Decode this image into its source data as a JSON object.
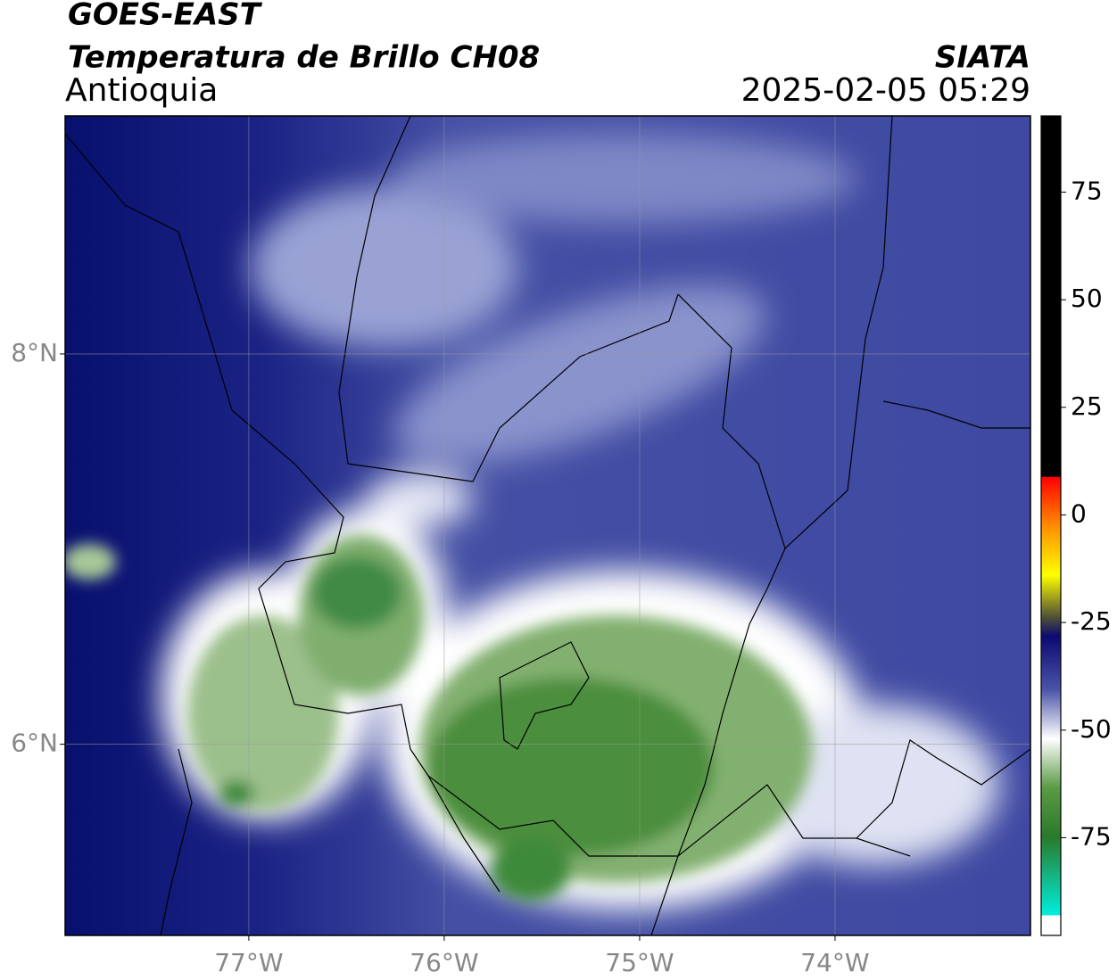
{
  "header": {
    "title": "GOES-EAST",
    "product": "Temperatura de Brillo CH08",
    "region": "Antioquia",
    "source": "SIATA",
    "datetime": "2025-02-05 05:29"
  },
  "map": {
    "xlim": [
      -77.94,
      -73.0
    ],
    "ylim": [
      5.02,
      9.22
    ],
    "xticks": [
      {
        "value": -77,
        "label": "77°W"
      },
      {
        "value": -76,
        "label": "76°W"
      },
      {
        "value": -75,
        "label": "75°W"
      },
      {
        "value": -74,
        "label": "74°W"
      }
    ],
    "yticks": [
      {
        "value": 8,
        "label": "8°N"
      },
      {
        "value": 6,
        "label": "6°N"
      }
    ],
    "grid": true
  },
  "colorbar": {
    "lim": [
      -97.7,
      92.7
    ],
    "ticks": [
      75,
      50,
      25,
      0,
      -25,
      -50,
      -75
    ]
  }
}
